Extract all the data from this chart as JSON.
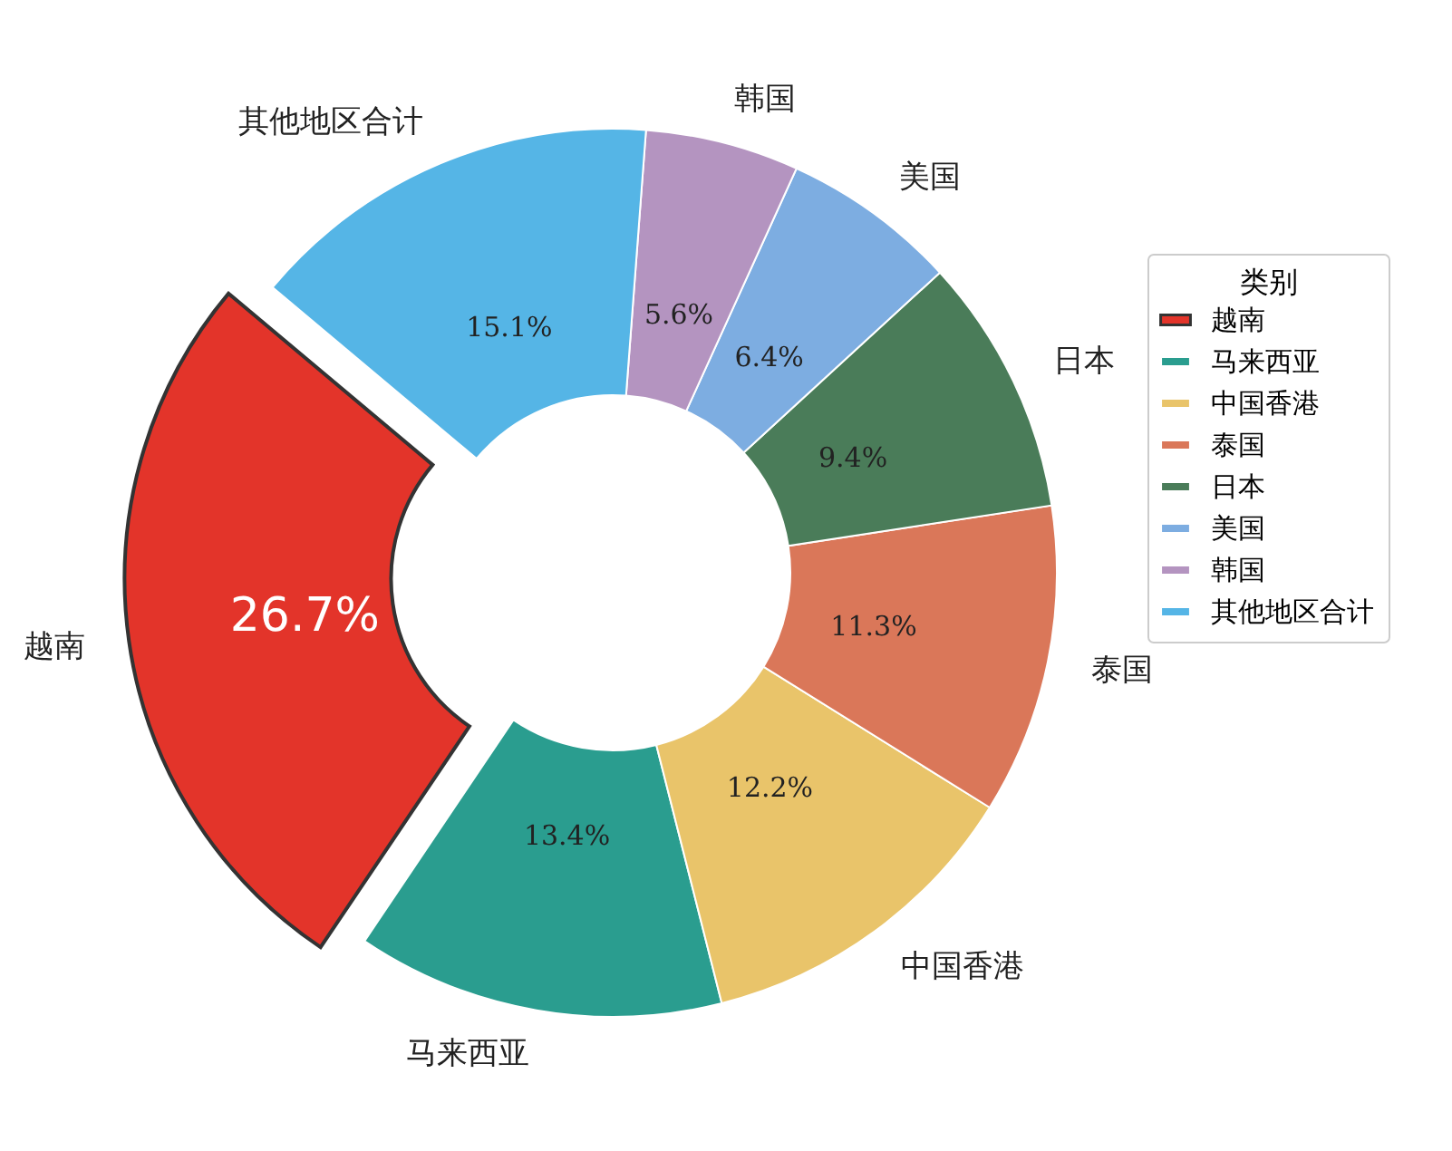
{
  "chart_data": {
    "type": "donut",
    "categories": [
      "越南",
      "马来西亚",
      "中国香港",
      "泰国",
      "日本",
      "美国",
      "韩国",
      "其他地区合计"
    ],
    "values": [
      26.7,
      13.4,
      12.2,
      11.3,
      9.4,
      6.4,
      5.6,
      15.1
    ],
    "colors": [
      "#e3342a",
      "#2a9d8f",
      "#e9c46a",
      "#da7759",
      "#4a7c59",
      "#7dade1",
      "#b494c0",
      "#55b5e6"
    ],
    "value_labels": [
      "26.7%",
      "13.4%",
      "12.2%",
      "11.3%",
      "9.4%",
      "6.4%",
      "5.6%",
      "15.1%"
    ],
    "legend_title": "类别",
    "legend": "right"
  }
}
